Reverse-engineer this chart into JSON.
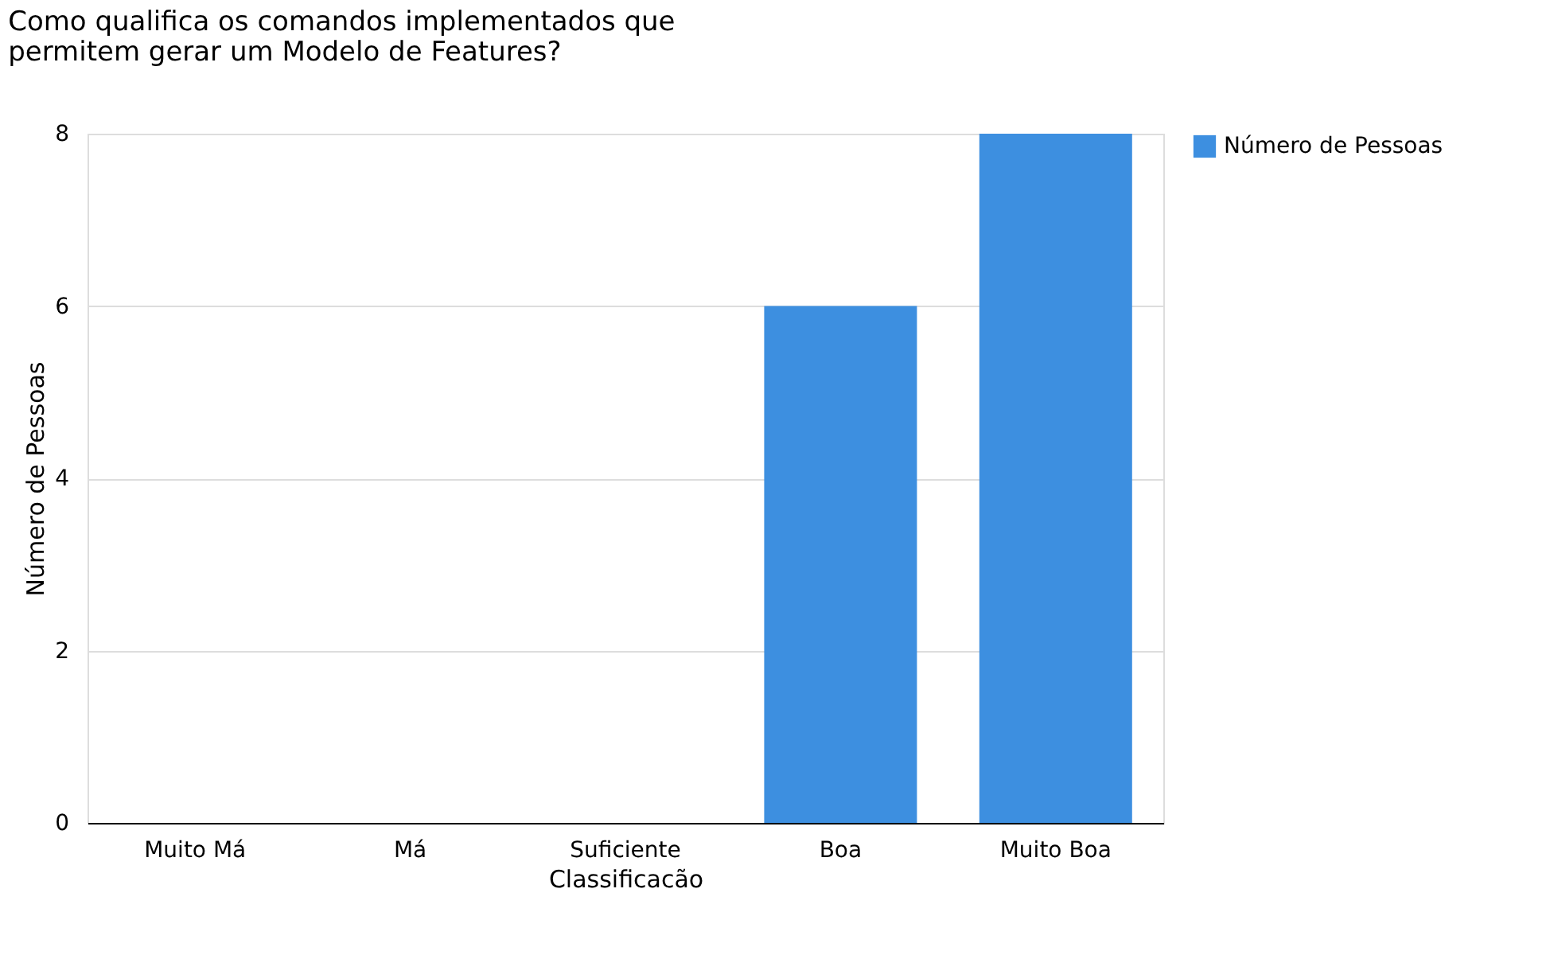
{
  "chart_data": {
    "type": "bar",
    "title": "Como qualifica os comandos implementados que permitem gerar um Modelo de Features?",
    "xlabel": "Classificacão",
    "ylabel": "Número de Pessoas",
    "categories": [
      "Muito Má",
      "Má",
      "Suficiente",
      "Boa",
      "Muito Boa"
    ],
    "series": [
      {
        "name": "Número de Pessoas",
        "color": "#3d8fe0",
        "values": [
          0,
          0,
          0,
          6,
          8
        ]
      }
    ],
    "ylim": [
      0,
      8
    ],
    "yticks": [
      0,
      2,
      4,
      6,
      8
    ],
    "grid": "y",
    "legend": "right"
  }
}
